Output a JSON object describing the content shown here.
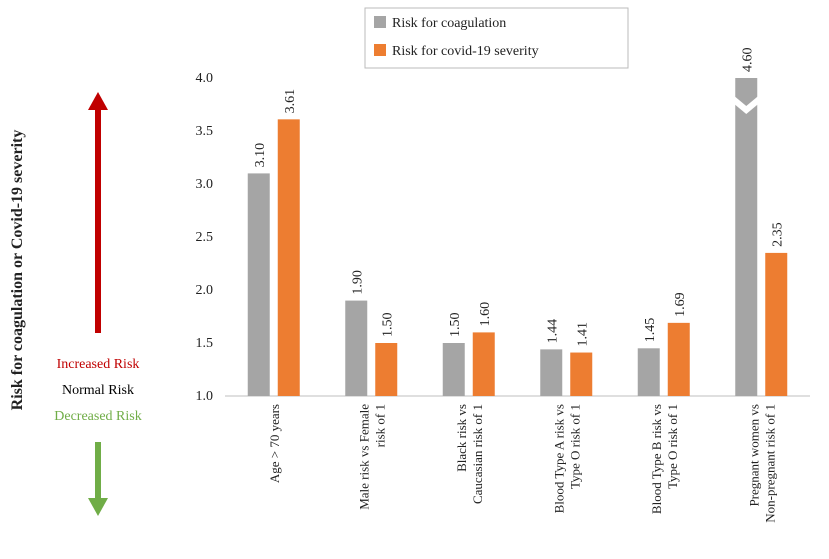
{
  "chart_data": {
    "type": "bar",
    "y_axis_label": "Risk for coagulation or Covid-19 severity",
    "annotations": {
      "increased": "Increased Risk",
      "normal": "Normal Risk",
      "decreased": "Decreased Risk"
    },
    "categories": [
      [
        "Age > 70 years"
      ],
      [
        "Male risk vs Female",
        "risk of 1"
      ],
      [
        "Black risk vs",
        "Caucasian risk of 1"
      ],
      [
        "Blood Type A risk vs",
        "Type O risk of 1"
      ],
      [
        "Blood Type B risk vs",
        "Type O risk of 1"
      ],
      [
        "Pregnant women vs",
        "Non-pregnant risk of 1"
      ]
    ],
    "series": [
      {
        "name": "Risk for coagulation",
        "color": "#a5a5a5",
        "values": [
          3.1,
          1.9,
          1.5,
          1.44,
          1.45,
          4.6
        ],
        "value_labels": [
          "3.10",
          "1.90",
          "1.50",
          "1.44",
          "1.45",
          "4.60"
        ]
      },
      {
        "name": "Risk for covid-19 severity",
        "color": "#ed7d31",
        "values": [
          3.61,
          1.5,
          1.6,
          1.41,
          1.69,
          2.35
        ],
        "value_labels": [
          "3.61",
          "1.50",
          "1.60",
          "1.41",
          "1.69",
          "2.35"
        ]
      }
    ],
    "ylim": [
      1,
      4
    ],
    "yticks": [
      {
        "value": 1,
        "label": "1.0"
      },
      1.5,
      {
        "value": 2,
        "label": "2.0"
      },
      2.5,
      {
        "value": 3,
        "label": "3.0"
      },
      3.5,
      {
        "value": 4,
        "label": "4.0"
      }
    ],
    "axis_break": true
  }
}
